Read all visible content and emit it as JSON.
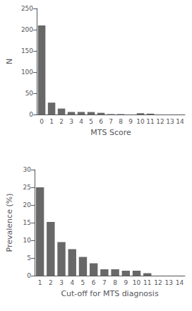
{
  "chart_data": [
    {
      "type": "bar",
      "categories": [
        "0",
        "1",
        "2",
        "3",
        "4",
        "5",
        "6",
        "7",
        "8",
        "9",
        "10",
        "11",
        "12",
        "13",
        "14"
      ],
      "values": [
        210,
        28,
        14,
        6,
        6,
        6,
        4,
        1,
        1,
        0,
        3,
        2,
        0,
        0,
        0
      ],
      "x_label": "MTS Score",
      "y_label": "N",
      "color": "#686868",
      "ylim": [
        0,
        250
      ],
      "yticks": [
        0,
        50,
        100,
        150,
        200,
        250
      ],
      "grid": false
    },
    {
      "type": "bar",
      "categories": [
        "1",
        "2",
        "3",
        "4",
        "5",
        "6",
        "7",
        "8",
        "9",
        "10",
        "11",
        "12",
        "13",
        "14"
      ],
      "values": [
        25.0,
        15.2,
        9.5,
        7.5,
        5.3,
        3.5,
        1.8,
        1.8,
        1.4,
        1.4,
        0.7,
        0.0,
        0.0,
        0.0
      ],
      "x_label": "Cut-off for MTS diagnosis",
      "y_label": "Prevalence (%)",
      "color": "#686868",
      "ylim": [
        0,
        30
      ],
      "yticks": [
        0,
        5,
        10,
        15,
        20,
        25,
        30
      ],
      "grid": false
    }
  ]
}
